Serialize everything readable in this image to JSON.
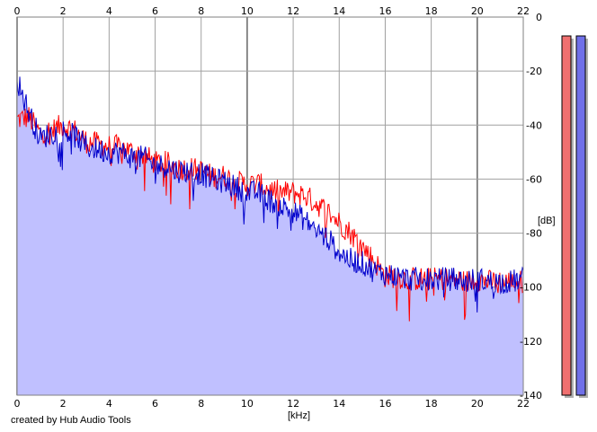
{
  "chart_data": {
    "type": "line",
    "xlabel": "[kHz]",
    "ylabel": "[dB]",
    "xlim": [
      0,
      22
    ],
    "ylim": [
      -140,
      0
    ],
    "xticks": [
      "0",
      "2",
      "4",
      "6",
      "8",
      "10",
      "12",
      "14",
      "16",
      "18",
      "20",
      "22"
    ],
    "yticks": [
      "0",
      "-20",
      "-40",
      "-60",
      "-80",
      "-100",
      "-120",
      "-140"
    ],
    "grid": true,
    "series": [
      {
        "color": "#ff0000",
        "x": [
          0,
          0.5,
          1,
          1.5,
          2,
          2.5,
          3,
          3.5,
          4,
          4.5,
          5,
          5.5,
          6,
          6.5,
          7,
          7.5,
          8,
          8.5,
          9,
          9.5,
          10,
          10.5,
          11,
          11.5,
          12,
          12.5,
          13,
          13.5,
          14,
          14.5,
          15,
          15.5,
          16,
          16.5,
          17,
          17.5,
          18,
          18.5,
          19,
          19.5,
          20,
          20.5,
          21,
          21.5,
          22
        ],
        "y": [
          -38,
          -37,
          -43,
          -42,
          -40,
          -42,
          -46,
          -47,
          -48,
          -48,
          -50,
          -51,
          -54,
          -54,
          -56,
          -56,
          -57,
          -59,
          -59,
          -61,
          -62,
          -62,
          -64,
          -65,
          -65,
          -66,
          -69,
          -72,
          -76,
          -80,
          -85,
          -90,
          -96,
          -96,
          -97,
          -97,
          -97,
          -97,
          -97,
          -98,
          -97,
          -98,
          -98,
          -98,
          -98
        ]
      },
      {
        "color": "#0000cc",
        "x": [
          0,
          0.5,
          1,
          1.5,
          2,
          2.5,
          3,
          3.5,
          4,
          4.5,
          5,
          5.5,
          6,
          6.5,
          7,
          7.5,
          8,
          8.5,
          9,
          9.5,
          10,
          10.5,
          11,
          11.5,
          12,
          12.5,
          13,
          13.5,
          14,
          14.5,
          15,
          15.5,
          16,
          16.5,
          17,
          17.5,
          18,
          18.5,
          19,
          19.5,
          20,
          20.5,
          21,
          21.5,
          22
        ],
        "y": [
          -23,
          -35,
          -45,
          -43,
          -42,
          -44,
          -48,
          -49,
          -50,
          -50,
          -52,
          -52,
          -55,
          -55,
          -57,
          -57,
          -58,
          -60,
          -61,
          -63,
          -65,
          -65,
          -68,
          -70,
          -72,
          -75,
          -79,
          -82,
          -87,
          -90,
          -91,
          -94,
          -95,
          -96,
          -97,
          -97,
          -97,
          -97,
          -97,
          -98,
          -97,
          -98,
          -98,
          -98,
          -97
        ]
      }
    ]
  },
  "meters": {
    "left": {
      "color": "#f07070",
      "level_db": -140
    },
    "right": {
      "color": "#7070e8",
      "level_db": -140
    }
  },
  "credit": "created by Hub Audio Tools",
  "fill_color": "#c0c0ff"
}
